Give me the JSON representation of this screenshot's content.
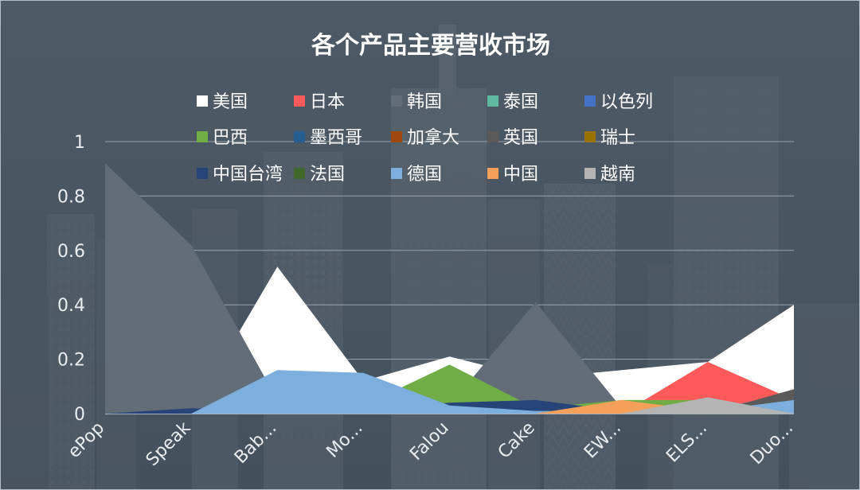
{
  "chart_data": {
    "type": "area",
    "title": "各个产品主要营收市场",
    "categories": [
      "ePop",
      "Speak",
      "Bab...",
      "Mo...",
      "Falou",
      "Cake",
      "EW...",
      "ELS...",
      "Duo..."
    ],
    "ylim": [
      0,
      1
    ],
    "yticks": [
      "0",
      "0.2",
      "0.4",
      "0.6",
      "0.8",
      "1"
    ],
    "grid": true,
    "legend_position": "top",
    "series": [
      {
        "name": "美国",
        "color": "#ffffff",
        "values": [
          0,
          0,
          0.54,
          0.12,
          0.21,
          0.13,
          0.16,
          0.19,
          0.4
        ]
      },
      {
        "name": "日本",
        "color": "#ff5a5a",
        "values": [
          0,
          0,
          0,
          0,
          0,
          0,
          0,
          0.19,
          0.05
        ]
      },
      {
        "name": "韩国",
        "color": "#636d78",
        "values": [
          0.92,
          0.62,
          0.05,
          0.02,
          0.03,
          0.41,
          0.02,
          0.01,
          0.08
        ]
      },
      {
        "name": "泰国",
        "color": "#5fb8a0",
        "values": [
          0,
          0,
          0,
          0,
          0,
          0,
          0,
          0,
          0
        ]
      },
      {
        "name": "以色列",
        "color": "#4472c4",
        "values": [
          0,
          0,
          0,
          0,
          0,
          0,
          0,
          0,
          0
        ]
      },
      {
        "name": "巴西",
        "color": "#70ad47",
        "values": [
          0,
          0,
          0.02,
          0.03,
          0.18,
          0.02,
          0.05,
          0.05,
          0.01
        ]
      },
      {
        "name": "墨西哥",
        "color": "#255e91",
        "values": [
          0,
          0.01,
          0.01,
          0.01,
          0.02,
          0.02,
          0.01,
          0.01,
          0
        ]
      },
      {
        "name": "加拿大",
        "color": "#9e480e",
        "values": [
          0,
          0,
          0,
          0,
          0,
          0,
          0,
          0,
          0
        ]
      },
      {
        "name": "英国",
        "color": "#5a5a5a",
        "values": [
          0,
          0,
          0,
          0,
          0,
          0,
          0,
          0,
          0.09
        ]
      },
      {
        "name": "瑞士",
        "color": "#997300",
        "values": [
          0,
          0,
          0,
          0,
          0,
          0,
          0,
          0,
          0
        ]
      },
      {
        "name": "中国台湾",
        "color": "#264478",
        "values": [
          0,
          0.02,
          0.01,
          0.01,
          0.04,
          0.05,
          0.01,
          0.01,
          0
        ]
      },
      {
        "name": "法国",
        "color": "#43682b",
        "values": [
          0,
          0,
          0,
          0,
          0,
          0,
          0,
          0,
          0
        ]
      },
      {
        "name": "德国",
        "color": "#7cafdd",
        "values": [
          0,
          0,
          0.16,
          0.15,
          0.03,
          0.01,
          0.01,
          0.01,
          0.05
        ]
      },
      {
        "name": "中国",
        "color": "#f4a05a",
        "values": [
          0,
          0,
          0,
          0,
          0,
          0,
          0.05,
          0.01,
          0
        ]
      },
      {
        "name": "越南",
        "color": "#b4b4b4",
        "values": [
          0,
          0,
          0,
          0,
          0,
          0,
          0,
          0.06,
          0
        ]
      }
    ]
  }
}
